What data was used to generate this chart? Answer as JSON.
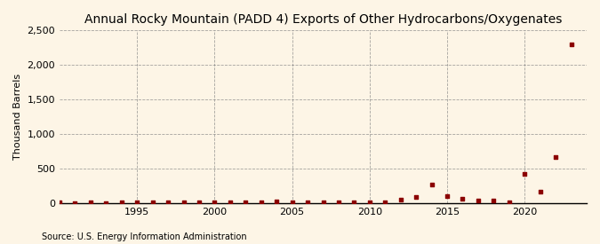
{
  "title": "Annual Rocky Mountain (PADD 4) Exports of Other Hydrocarbons/Oxygenates",
  "ylabel": "Thousand Barrels",
  "source": "Source: U.S. Energy Information Administration",
  "background_color": "#fdf5e6",
  "dot_color": "#8b0000",
  "xlim": [
    1990,
    2024
  ],
  "ylim": [
    0,
    2500
  ],
  "yticks": [
    0,
    500,
    1000,
    1500,
    2000,
    2500
  ],
  "ytick_labels": [
    "0",
    "500",
    "1,000",
    "1,500",
    "2,000",
    "2,500"
  ],
  "xticks": [
    1995,
    2000,
    2005,
    2010,
    2015,
    2020
  ],
  "years": [
    1990,
    1991,
    1992,
    1993,
    1994,
    1995,
    1996,
    1997,
    1998,
    1999,
    2000,
    2001,
    2002,
    2003,
    2004,
    2005,
    2006,
    2007,
    2008,
    2009,
    2010,
    2011,
    2012,
    2013,
    2014,
    2015,
    2016,
    2017,
    2018,
    2019,
    2020,
    2021,
    2022,
    2023
  ],
  "values": [
    2,
    0,
    3,
    1,
    2,
    4,
    3,
    2,
    5,
    10,
    8,
    6,
    7,
    12,
    15,
    14,
    10,
    8,
    12,
    6,
    5,
    10,
    50,
    80,
    260,
    100,
    60,
    40,
    30,
    10,
    420,
    160,
    670,
    2300
  ]
}
